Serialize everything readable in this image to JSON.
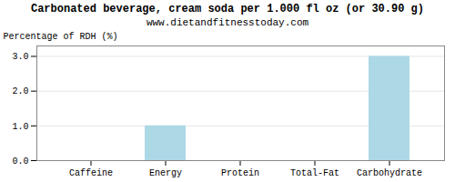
{
  "chart_data": {
    "type": "bar",
    "title": "Carbonated beverage, cream soda per 1.000 fl oz (or 30.90 g)",
    "subtitle": "www.dietandfitnesstoday.com",
    "categories": [
      "Caffeine",
      "Energy",
      "Protein",
      "Total-Fat",
      "Carbohydrate"
    ],
    "values": [
      0.0,
      1.0,
      0.0,
      0.0,
      3.0
    ],
    "color": "#add8e6",
    "ylabel": "Percentage of RDH (%)",
    "ylim": [
      0,
      3.3
    ],
    "yticks": [
      {
        "value": 0,
        "label": "0.0"
      },
      {
        "value": 1,
        "label": "1.0"
      },
      {
        "value": 2,
        "label": "2.0"
      },
      {
        "value": 3,
        "label": "3.0"
      }
    ],
    "grid": true
  }
}
